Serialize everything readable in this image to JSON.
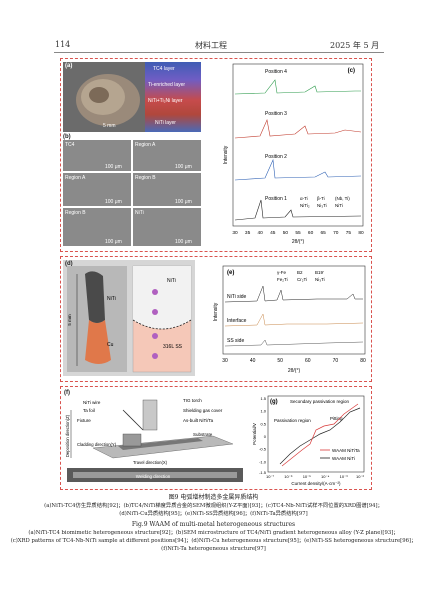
{
  "header": {
    "page_number": "114",
    "journal": "材料工程",
    "date": "2025 年 5 月"
  },
  "panel_a": {
    "label": "(a)",
    "layers": [
      "TC4 layer",
      "Ti-enriched layer",
      "NiTi+Ti₂Ni layer",
      "NiTi layer"
    ],
    "scale": "5 mm"
  },
  "panel_b": {
    "label": "(b)",
    "tiles": [
      {
        "title": "TC4",
        "scale": "100 μm"
      },
      {
        "title": "Region A",
        "scale": "100 μm"
      },
      {
        "title": "Region A",
        "scale": "100 μm"
      },
      {
        "title": "Region B",
        "scale": "100 μm"
      },
      {
        "title": "Region B",
        "scale": "100 μm"
      },
      {
        "title": "NiTi",
        "scale": "100 μm"
      }
    ]
  },
  "panel_c": {
    "label": "(c)",
    "positions": [
      "Position 4",
      "Position 3",
      "Position 2",
      "Position 1"
    ],
    "legend": [
      "α-Ti",
      "β-Ti",
      "(Nb, Ti)",
      "NiTi₂",
      "Ni₃Ti",
      "NiTi"
    ],
    "ylabel": "Intensity",
    "xlabel": "2θ/(°)",
    "xticks": [
      "30",
      "35",
      "40",
      "45",
      "50",
      "55",
      "60",
      "65",
      "70",
      "75",
      "80"
    ]
  },
  "panel_d": {
    "label": "(d)",
    "labels": {
      "niti": "NiTi",
      "cu": "Cu",
      "size": "5 mm",
      "niti_schematic": "NiTi",
      "ss": "316L SS"
    }
  },
  "panel_e": {
    "label": "(e)",
    "legend": [
      "γ-Fe",
      "B2",
      "B19′",
      "Fe₂Ti",
      "Cr₂Ti",
      "Ni₃Ti"
    ],
    "traces": [
      "NiTi side",
      "Interface",
      "SS side"
    ],
    "ylabel": "Intensity",
    "xlabel": "2θ/(°)",
    "xticks": [
      "30",
      "40",
      "50",
      "60",
      "70",
      "80"
    ]
  },
  "panel_f": {
    "label": "(f)",
    "labels": [
      "NiTi wire",
      "Ta foil",
      "Fixture",
      "TIG torch",
      "Shielding gas cover",
      "As-built NiTi/Ta",
      "Substrate",
      "Cladding direction(Y)",
      "Travel direction(X)",
      "Deposition direction(Z)",
      "Welding direction"
    ]
  },
  "panel_g": {
    "label": "(g)",
    "annotations": [
      "Secondary passivation region",
      "Passivation region",
      "Pitting"
    ],
    "legend": [
      "WAAM NiTiTa",
      "WAAM NiTi"
    ],
    "ylabel": "Potential/V",
    "xlabel": "Current density/(A·cm⁻²)",
    "xticks": [
      "10⁻⁷",
      "10⁻⁶",
      "10⁻⁵",
      "10⁻⁴",
      "10⁻³",
      "10⁻²"
    ],
    "yticks": [
      "1.5",
      "1.0",
      "0.5",
      "0",
      "-0.5",
      "-1.0",
      "-1.5"
    ]
  },
  "caption": {
    "cn_title": "图9  电弧增材制造多金属异质结构",
    "cn_lines": [
      "(a)NiTi-TC4仿生异质结构[92]；(b)TC4/NiTi梯度异质合金的SEM微观组织(Y-Z平面)[93]；(c)TC4-Nb-NiTi试样不同位置的XRD图谱[94]；",
      "(d)NiTi-Cu异质结构[95]；(e)NiTi-SS异质结构[96]；(f)NiTi-Ta异质结构[97]"
    ],
    "en_title": "Fig.9  WAAM of multi-metal heterogeneous structures",
    "en_lines": [
      "(a)NiTi-TC4 biomimetic heterogeneous structure[92]；(b)SEM microstructure of TC4/NiTi gradient heterogeneous alloy (Y-Z plane)[93]；",
      "(c)XRD patterns of TC4-Nb-NiTi sample at different positions[94]；(d)NiTi-Cu heterogeneous structure[95]；(e)NiTi-SS heterogeneous structure[96]；",
      "(f)NiTi-Ta heterogeneous structure[97]"
    ]
  }
}
